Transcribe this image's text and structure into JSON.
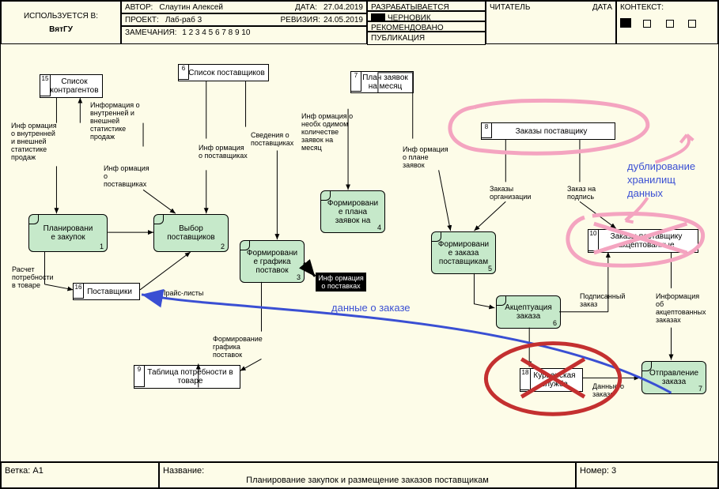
{
  "header": {
    "used_in_lbl": "ИСПОЛЬЗУЕТСЯ В:",
    "used_in_val": "ВятГУ",
    "author_lbl": "АВТОР:",
    "author_val": "Слаутин Алексей",
    "project_lbl": "ПРОЕКТ:",
    "project_val": "Лаб-раб 3",
    "notes_lbl": "ЗАМЕЧАНИЯ:",
    "notes_val": "1 2 3 4 5 6 7 8 9 10",
    "date_lbl": "ДАТА:",
    "date_val": "27.04.2019",
    "rev_lbl": "РЕВИЗИЯ:",
    "rev_val": "24.05.2019",
    "dev_lbl": "РАЗРАБАТЫВАЕТСЯ",
    "draft_lbl": "ЧЕРНОВИК",
    "rec_lbl": "РЕКОМЕНДОВАНО",
    "pub_lbl": "ПУБЛИКАЦИЯ",
    "reader_lbl": "ЧИТАТЕЛЬ",
    "date2_lbl": "ДАТА",
    "context_lbl": "КОНТЕКСТ:"
  },
  "footer": {
    "branch_lbl": "Ветка:",
    "branch_val": "А1",
    "name_lbl": "Название:",
    "name_val": "Планирование закупок и размещение заказов поставщикам",
    "num_lbl": "Номер:",
    "num_val": "3"
  },
  "activities": {
    "a1": {
      "label": "Планировани\nе закупок",
      "num": "1"
    },
    "a2": {
      "label": "Выбор\nпоставщиков",
      "num": "2"
    },
    "a3": {
      "label": "Формировани\nе графика\nпоставок",
      "num": "3"
    },
    "a4": {
      "label": "Формировани\nе плана\nзаявок на",
      "num": "4"
    },
    "a5": {
      "label": "Формировани\nе заказа\nпоставщикам",
      "num": "5"
    },
    "a6": {
      "label": "Акцептуация\nзаказа",
      "num": "6"
    },
    "a7": {
      "label": "Отправление\nзаказа",
      "num": "7"
    }
  },
  "datastores": {
    "d15": {
      "num": "15",
      "label": "Список\nконтрагентов"
    },
    "d6": {
      "num": "6",
      "label": "Список поставщиков"
    },
    "d7": {
      "num": "7",
      "label": "План заявок\nна месяц"
    },
    "d8": {
      "num": "8",
      "label": "Заказы поставщику"
    },
    "d16": {
      "num": "16",
      "label": "Поставщики"
    },
    "d10": {
      "num": "10",
      "label": "Заказы поставщику\nакцептованные"
    },
    "d18": {
      "num": "18",
      "label": "Курьерская\nслужба"
    },
    "d9": {
      "num": "9",
      "label": "Таблица потребности в\nтоваре"
    }
  },
  "arrowLabels": {
    "l1": "Инф ормация\nо внутренней\nи внешней\nстатистике\nпродаж",
    "l2": "Информация о\nвнутренней и\nвнешней\nстатистике\nпродаж",
    "l3": "Инф ормация\nо\nпоставщиках",
    "l4": "Инф ормация\nо поставщиках",
    "l5": "Сведения о\nпоставщиках",
    "l6": "Инф ормация о\nнеобх одимом\nколичестве\nзаявок на\nмесяц",
    "l7": "Инф ормация\nо плане\nзаявок",
    "l8": "Заказы\nорганизации",
    "l9": "Заказ на\nподпись",
    "l10": "Расчет\nпотребности\nв товаре",
    "l11": "Прайс-листы",
    "l12": "Формирование\nграфика\nпоставок",
    "l13": "Подписанный\nзаказ",
    "l14": "Информация\nоб\nакцептованных\nзаказах",
    "l15": "Данные о\nзаказе"
  },
  "infobox": "Инф ормация\nо поставках",
  "annotations": {
    "blue": "данные о заказе",
    "dup1": "дублирование",
    "dup2": "хранилищ",
    "dup3": "данных"
  },
  "style": {
    "bg": "#fdfce8",
    "act_fill": "#c6e9ca",
    "pink": "#f4a4c0",
    "blue": "#3a4fd3",
    "red": "#c43030",
    "arrow": "#000000"
  }
}
